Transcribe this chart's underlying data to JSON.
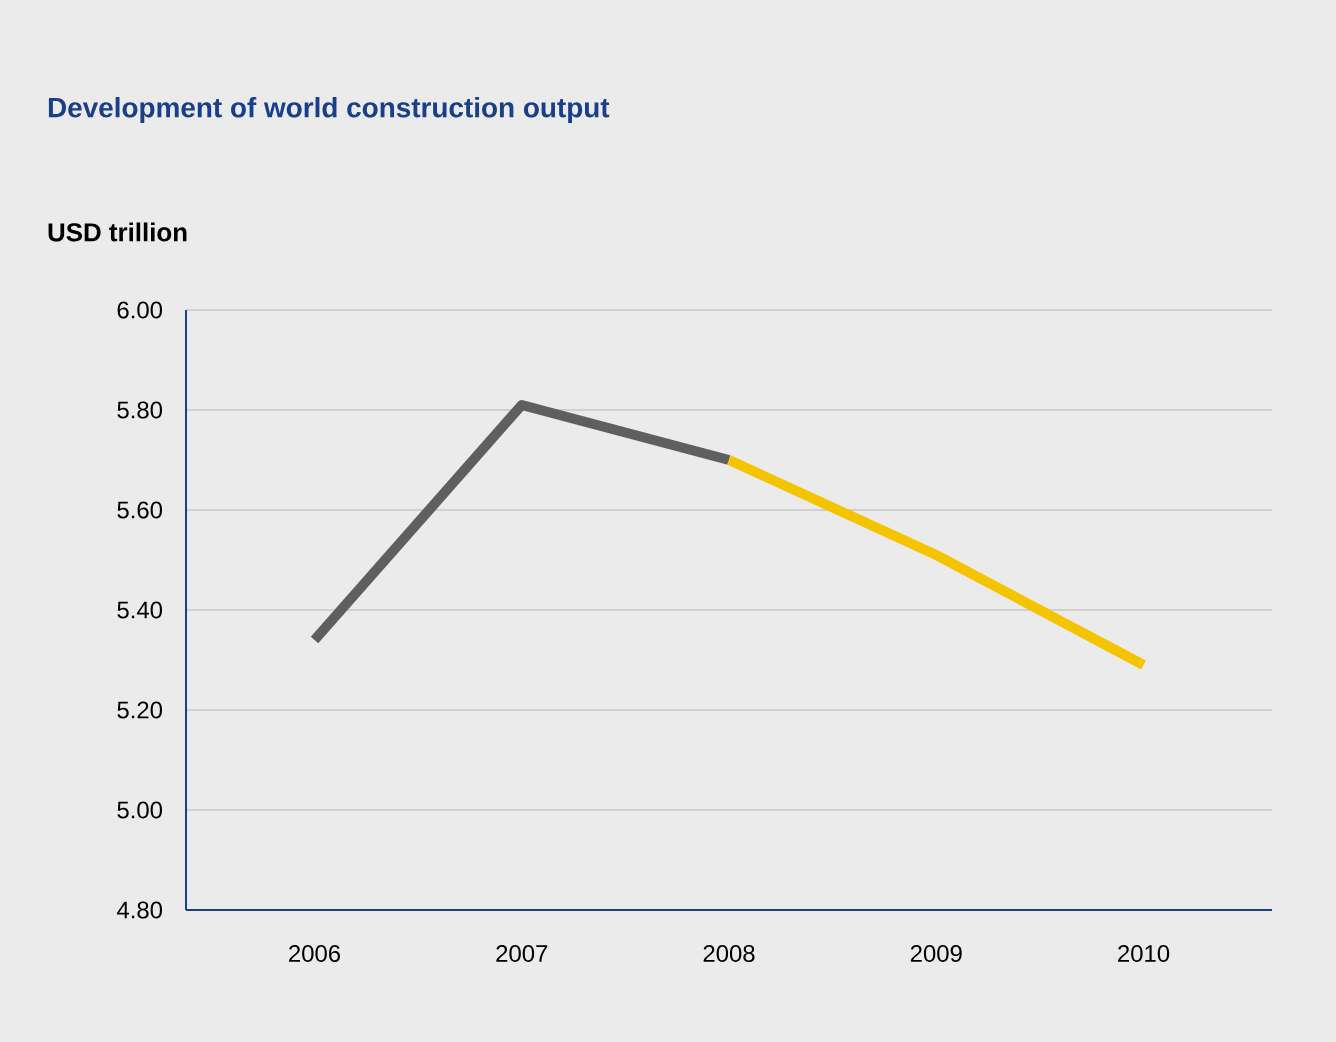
{
  "chart_data": {
    "type": "line",
    "title": "Development of world construction output",
    "ylabel": "USD trillion",
    "categories": [
      "2006",
      "2007",
      "2008",
      "2009",
      "2010"
    ],
    "series": [
      {
        "color": "#5f5f5f",
        "values": [
          5.34,
          5.81,
          5.7,
          null,
          null
        ]
      },
      {
        "color": "#f5c400",
        "values": [
          null,
          null,
          5.7,
          5.51,
          5.29
        ]
      }
    ],
    "ylim": [
      4.8,
      6.0
    ],
    "yticks": [
      {
        "value": 4.8,
        "label": "4.80"
      },
      {
        "value": 5.0,
        "label": "5.00"
      },
      {
        "value": 5.2,
        "label": "5.20"
      },
      {
        "value": 5.4,
        "label": "5.40"
      },
      {
        "value": 5.6,
        "label": "5.60"
      },
      {
        "value": 5.8,
        "label": "5.80"
      },
      {
        "value": 6.0,
        "label": "6.00"
      }
    ],
    "grid": "y",
    "marker": "none",
    "line_style": "solid"
  }
}
